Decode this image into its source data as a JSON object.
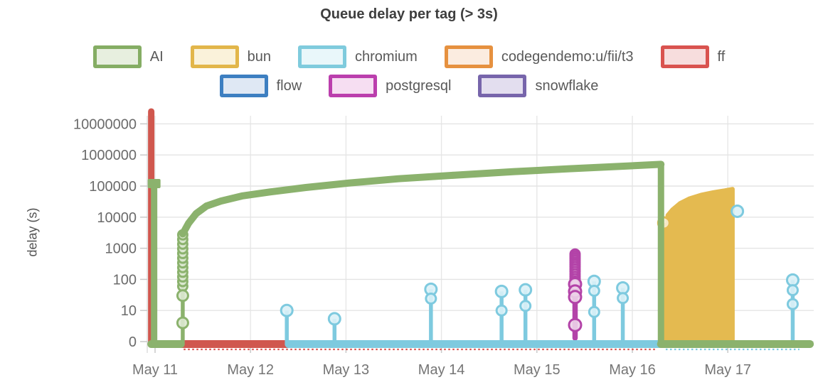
{
  "title": "Queue delay per tag (> 3s)",
  "ylabel": "delay (s)",
  "legend": {
    "rows": [
      5,
      3
    ],
    "items": [
      {
        "label": "AI",
        "color": "#85ad64",
        "fill": "#e7efdf"
      },
      {
        "label": "bun",
        "color": "#e2b64a",
        "fill": "#faf2da"
      },
      {
        "label": "chromium",
        "color": "#7fcbdd",
        "fill": "#e9f7fa"
      },
      {
        "label": "codegendemo:u/fii/t3",
        "color": "#e6913f",
        "fill": "#fbece0"
      },
      {
        "label": "ff",
        "color": "#d9534f",
        "fill": "#f7dddd"
      },
      {
        "label": "flow",
        "color": "#3d7fc1",
        "fill": "#dfe8f4"
      },
      {
        "label": "postgresql",
        "color": "#bb3fad",
        "fill": "#f6def2"
      },
      {
        "label": "snowflake",
        "color": "#7765ab",
        "fill": "#e3deef"
      }
    ]
  },
  "chart_data": {
    "type": "scatter",
    "title": "Queue delay per tag (> 3s)",
    "ylabel": "delay (s)",
    "y_axis": {
      "scale": "symlog",
      "ticks": [
        0,
        10,
        100,
        1000,
        10000,
        100000,
        1000000,
        10000000
      ]
    },
    "x_axis": {
      "tick_labels": [
        "May 11",
        "May 12",
        "May 13",
        "May 14",
        "May 15",
        "May 16",
        "May 17"
      ]
    },
    "grid": true,
    "legend_position": "top",
    "zero_underlines": [
      {
        "from": 0.3,
        "to": 5.25,
        "color": "#d9534f"
      },
      {
        "from": 5.35,
        "to": 6.75,
        "color": "#7ecadf"
      }
    ],
    "series": [
      {
        "name": "ff",
        "color": "#d0574e",
        "spikes": [
          {
            "day": -0.04,
            "top": 25000000,
            "width": 9,
            "cap": "round"
          }
        ],
        "zero_bars": [
          {
            "from": 0.26,
            "to": 1.42
          }
        ]
      },
      {
        "name": "postgresql",
        "color": "#b343a8",
        "ring_fill": "#ecd3e8",
        "spike_markers": {
          "day": 4.4,
          "stem_bottom": 1.3,
          "stem_top": 650,
          "dense": [
            650,
            560,
            480,
            410,
            350,
            300,
            255,
            215,
            180,
            150,
            125,
            105,
            88,
            74
          ],
          "rings": [
            70,
            41,
            27,
            3.4
          ]
        }
      },
      {
        "name": "bun",
        "color": "#e4ba50",
        "ring_fill": "#f7edd3",
        "lollipops": [
          {
            "day": 5.33,
            "values": [
              6500
            ]
          }
        ],
        "area": {
          "from": 5.37,
          "to": 6.05,
          "top": [
            [
              5.37,
              11500
            ],
            [
              5.42,
              17500
            ],
            [
              5.5,
              28000
            ],
            [
              5.6,
              40000
            ],
            [
              5.72,
              52000
            ],
            [
              5.85,
              63000
            ],
            [
              5.97,
              72000
            ],
            [
              6.05,
              80000
            ]
          ]
        }
      },
      {
        "name": "chromium",
        "color": "#7ecadf",
        "ring_fill": "#daf1f7",
        "lollipops": [
          {
            "day": 1.38,
            "values": [
              10
            ]
          },
          {
            "day": 1.88,
            "values": [
              5.4
            ]
          },
          {
            "day": 2.89,
            "values": [
              48,
              24
            ]
          },
          {
            "day": 3.63,
            "values": [
              41,
              10
            ]
          },
          {
            "day": 3.88,
            "values": [
              46,
              14
            ]
          },
          {
            "day": 4.6,
            "values": [
              86,
              43,
              9
            ]
          },
          {
            "day": 4.9,
            "values": [
              53,
              25
            ]
          },
          {
            "day": 6.1,
            "values": [
              15500
            ],
            "no_stem": true
          },
          {
            "day": 6.68,
            "values": [
              95,
              45,
              16
            ]
          }
        ],
        "zero_bars": [
          {
            "from": 1.4,
            "to": 5.32
          }
        ]
      },
      {
        "name": "AI",
        "color": "#8bb26d",
        "ring_fill": "#dce8d0",
        "spikes": [
          {
            "day": -0.01,
            "top": 120000,
            "width": 9,
            "cap": "square"
          }
        ],
        "rise": {
          "day": 0.29,
          "rings": [
            4,
            30
          ],
          "dense": [
            60,
            85,
            120,
            170,
            240,
            340,
            480,
            680,
            960,
            1360,
            1920,
            2700
          ]
        },
        "curve": [
          [
            0.29,
            2900
          ],
          [
            0.35,
            6300
          ],
          [
            0.43,
            13000
          ],
          [
            0.54,
            23000
          ],
          [
            0.69,
            33000
          ],
          [
            0.91,
            48000
          ],
          [
            1.21,
            65000
          ],
          [
            1.58,
            90000
          ],
          [
            2.03,
            125000
          ],
          [
            2.55,
            172000
          ],
          [
            3.15,
            225000
          ],
          [
            3.75,
            290000
          ],
          [
            4.34,
            360000
          ],
          [
            4.87,
            430000
          ],
          [
            5.3,
            500000
          ]
        ],
        "drop": {
          "day": 5.3,
          "from": 500000
        },
        "zero_bars": [
          {
            "from": -0.04,
            "to": 0.27
          },
          {
            "from": 5.3,
            "to": 6.86
          }
        ]
      }
    ]
  }
}
